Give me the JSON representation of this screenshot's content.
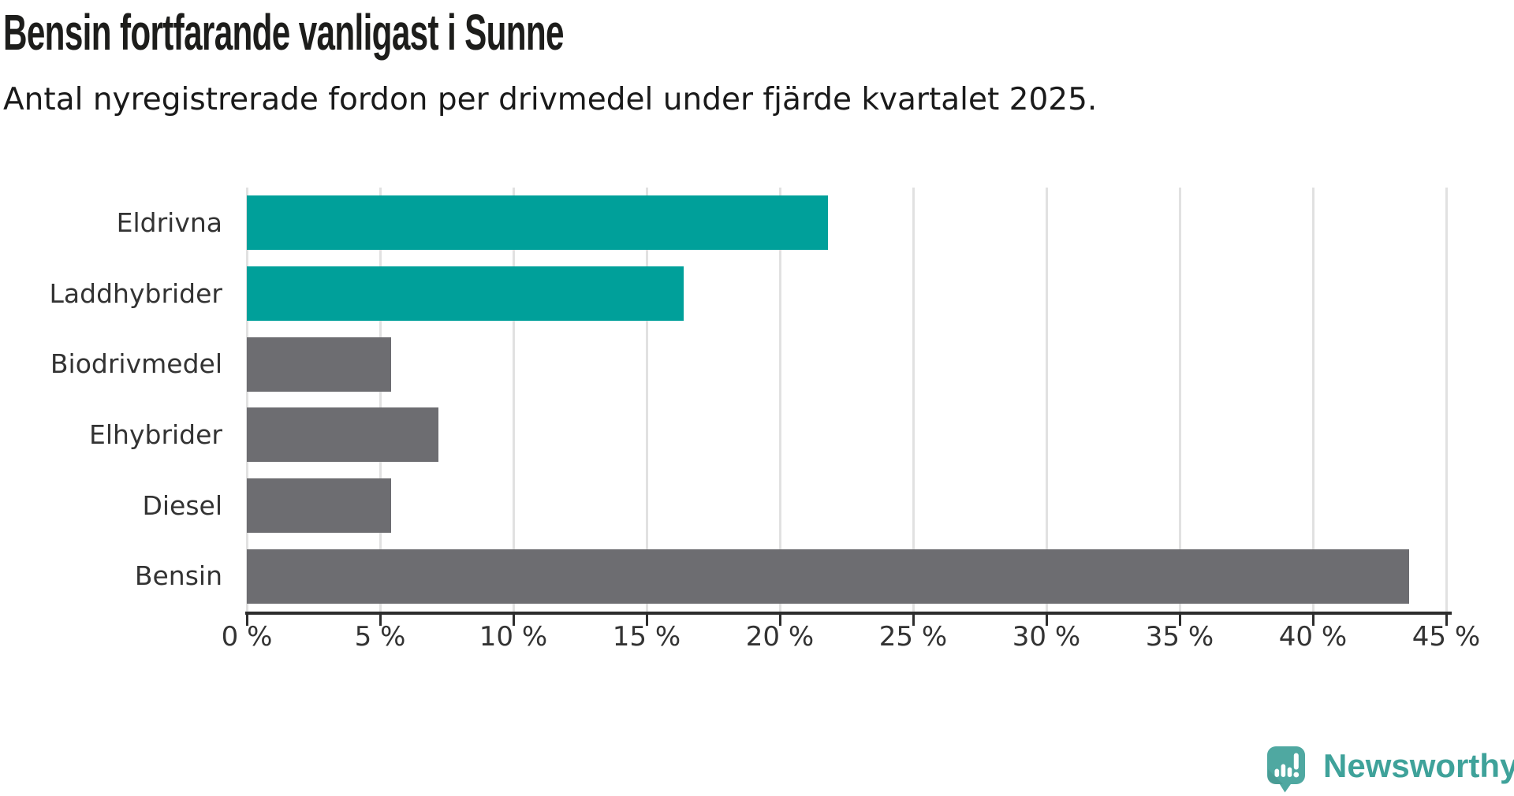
{
  "header": {
    "title": "Bensin fortfarande vanligast i Sunne",
    "subtitle": "Antal nyregistrerade fordon per drivmedel under fjärde kvartalet 2025."
  },
  "chart_data": {
    "type": "bar",
    "orientation": "horizontal",
    "title": "Bensin fortfarande vanligast i Sunne",
    "subtitle": "Antal nyregistrerade fordon per drivmedel under fjärde kvartalet 2025.",
    "categories": [
      "Eldrivna",
      "Laddhybrider",
      "Biodrivmedel",
      "Elhybrider",
      "Diesel",
      "Bensin"
    ],
    "values": [
      21.8,
      16.4,
      5.4,
      7.2,
      5.4,
      43.6
    ],
    "unit": "%",
    "xlim": [
      0,
      45
    ],
    "tick_values": [
      0,
      5,
      10,
      15,
      20,
      25,
      30,
      35,
      40,
      45
    ],
    "x_ticks": [
      "0 %",
      "5 %",
      "10 %",
      "15 %",
      "20 %",
      "25 %",
      "30 %",
      "35 %",
      "40 %",
      "45 %"
    ],
    "grid": true,
    "legend": "none",
    "bar_colors": [
      "#00a09a",
      "#00a09a",
      "#6d6d71",
      "#6d6d71",
      "#6d6d71",
      "#6d6d71"
    ],
    "highlight_color": "#00a09a",
    "base_color": "#6d6d71",
    "axis_color": "#2d2d2d",
    "gridline_color": "#e1e1e1"
  },
  "footer": {
    "brand": "Newsworthy",
    "logo_icon": "newsworthy-speech-bubble-bar-chart-icon",
    "brand_color": "#3fa29a",
    "icon_color": "#4fa8a1"
  }
}
